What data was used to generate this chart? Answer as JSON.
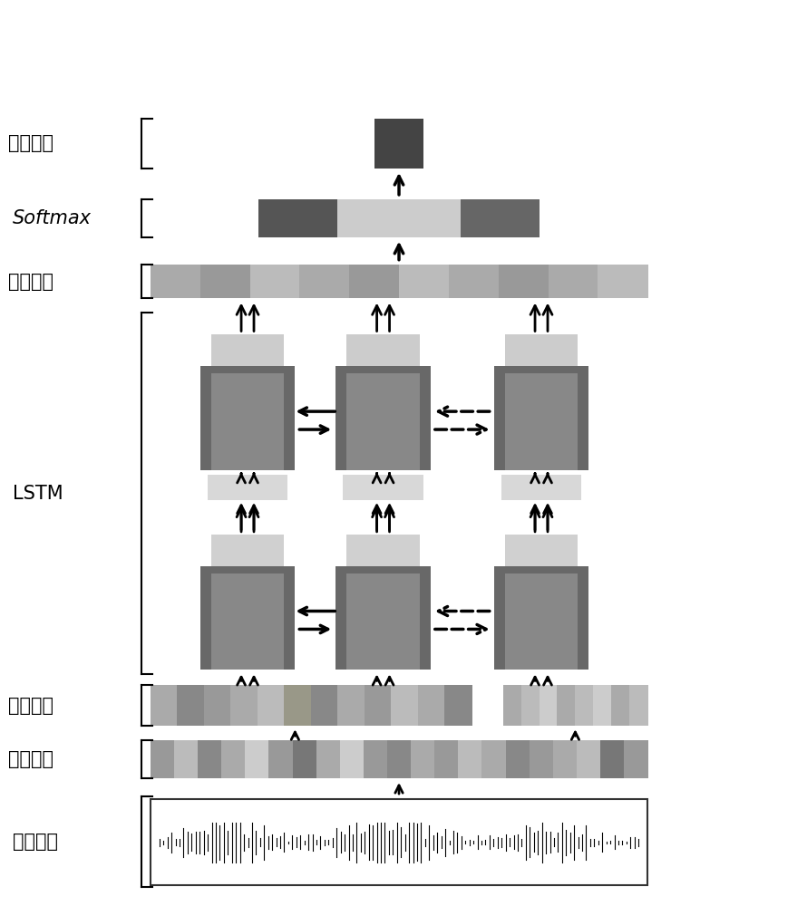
{
  "bg_color": "#ffffff",
  "labels": {
    "output": "输出结果",
    "softmax": "Softmax",
    "fc": "全连接层",
    "lstm": "LSTM",
    "silence": "静音分离",
    "framing": "分帧处理",
    "input": "输入信号"
  },
  "colors": {
    "dark_gray": "#555555",
    "mid_gray": "#888888",
    "light_gray": "#bbbbbb",
    "very_light_gray": "#dddddd",
    "dark_box": "#555555",
    "lighter_box": "#999999",
    "fc_color1": "#aaaaaa",
    "fc_color2": "#bbbbbb",
    "fc_color3": "#cccccc",
    "softmax_dark": "#555555",
    "softmax_light": "#cccccc",
    "output_box": "#555555"
  }
}
